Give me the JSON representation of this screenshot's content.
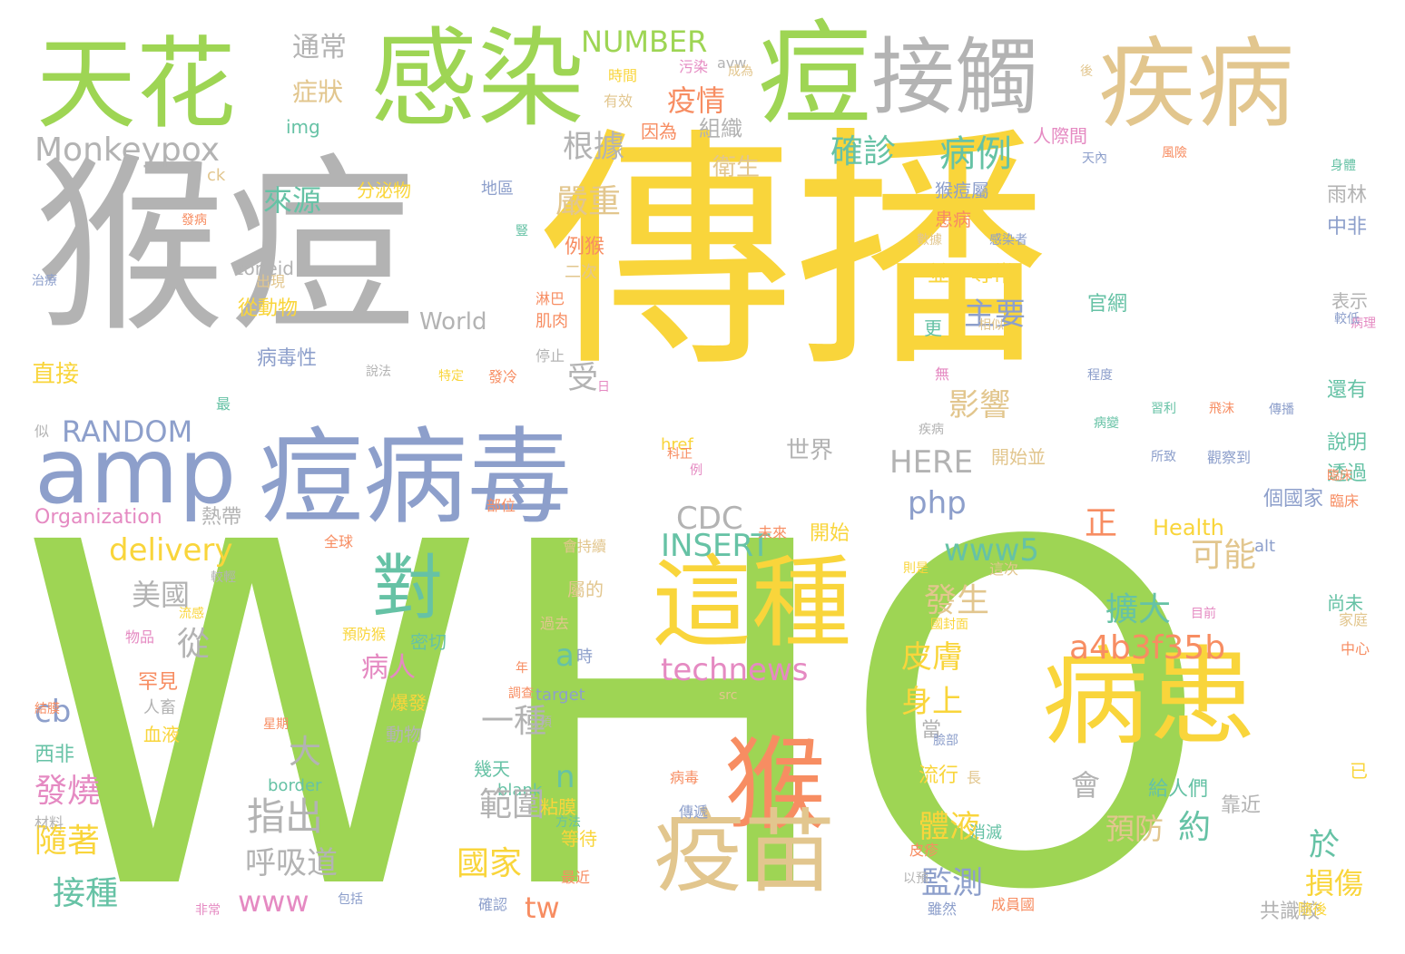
{
  "palette": {
    "green": "#9ed554",
    "yellow": "#f9d53b",
    "gray": "#b3b3b3",
    "tan": "#e2c68e",
    "blue": "#8d9fcb",
    "orange": "#f78d62",
    "teal": "#66c2a5",
    "pink": "#e58ac2"
  },
  "words": [
    {
      "text": "WHO",
      "color": "#9ed554"
    },
    {
      "text": "傳播",
      "color": "#f9d53b"
    },
    {
      "text": "猴痘",
      "color": "#b3b3b3"
    },
    {
      "text": "痘病毒",
      "color": "#8d9fcb"
    },
    {
      "text": "amp",
      "color": "#8d9fcb"
    },
    {
      "text": "天花",
      "color": "#9ed554"
    },
    {
      "text": "感染",
      "color": "#9ed554"
    },
    {
      "text": "痘",
      "color": "#9ed554"
    },
    {
      "text": "接觸",
      "color": "#b3b3b3"
    },
    {
      "text": "疾病",
      "color": "#e2c68e"
    },
    {
      "text": "病患",
      "color": "#f9d53b"
    },
    {
      "text": "這種",
      "color": "#f9d53b"
    },
    {
      "text": "猴",
      "color": "#f78d62"
    },
    {
      "text": "疫苗",
      "color": "#e2c68e"
    },
    {
      "text": "對",
      "color": "#66c2a5"
    },
    {
      "text": "Monkeypox",
      "color": "#b3b3b3"
    },
    {
      "text": "NUMBER",
      "color": "#9ed554"
    },
    {
      "text": "RANDOM",
      "color": "#8d9fcb"
    },
    {
      "text": "delivery",
      "color": "#f9d53b"
    },
    {
      "text": "technews",
      "color": "#e58ac2"
    },
    {
      "text": "a4b3f35b",
      "color": "#f78d62"
    },
    {
      "text": "INSERT",
      "color": "#66c2a5"
    },
    {
      "text": "www5",
      "color": "#66c2a5"
    },
    {
      "text": "php",
      "color": "#8d9fcb"
    },
    {
      "text": "HERE",
      "color": "#b3b3b3"
    },
    {
      "text": "CDC",
      "color": "#b3b3b3"
    },
    {
      "text": "www",
      "color": "#e58ac2"
    },
    {
      "text": "tw",
      "color": "#f78d62"
    },
    {
      "text": "cb",
      "color": "#8d9fcb"
    },
    {
      "text": "a",
      "color": "#66c2a5"
    },
    {
      "text": "n",
      "color": "#66c2a5"
    },
    {
      "text": "World",
      "color": "#b3b3b3"
    },
    {
      "text": "Organization",
      "color": "#e58ac2"
    },
    {
      "text": "Health",
      "color": "#f9d53b"
    },
    {
      "text": "zoneid",
      "color": "#b3b3b3"
    },
    {
      "text": "img",
      "color": "#66c2a5"
    },
    {
      "text": "ck",
      "color": "#e2c68e"
    },
    {
      "text": "avw",
      "color": "#b3b3b3"
    },
    {
      "text": "href",
      "color": "#f9d53b"
    },
    {
      "text": "target",
      "color": "#8d9fcb"
    },
    {
      "text": "src",
      "color": "#e2c68e"
    },
    {
      "text": "blank",
      "color": "#66c2a5"
    },
    {
      "text": "border",
      "color": "#66c2a5"
    },
    {
      "text": "alt",
      "color": "#8d9fcb"
    },
    {
      "text": "確診",
      "color": "#66c2a5"
    },
    {
      "text": "病例",
      "color": "#66c2a5"
    },
    {
      "text": "主要",
      "color": "#8d9fcb"
    },
    {
      "text": "影響",
      "color": "#e2c68e"
    },
    {
      "text": "發生",
      "color": "#e2c68e"
    },
    {
      "text": "擴大",
      "color": "#66c2a5"
    },
    {
      "text": "皮膚",
      "color": "#f9d53b"
    },
    {
      "text": "身上",
      "color": "#f9d53b"
    },
    {
      "text": "體液",
      "color": "#f9d53b"
    },
    {
      "text": "監測",
      "color": "#8d9fcb"
    },
    {
      "text": "約",
      "color": "#66c2a5"
    },
    {
      "text": "預防",
      "color": "#e2c68e"
    },
    {
      "text": "會",
      "color": "#b3b3b3"
    },
    {
      "text": "國家",
      "color": "#f9d53b"
    },
    {
      "text": "範圍",
      "color": "#b3b3b3"
    },
    {
      "text": "一種",
      "color": "#b3b3b3"
    },
    {
      "text": "指出",
      "color": "#b3b3b3"
    },
    {
      "text": "呼吸道",
      "color": "#b3b3b3"
    },
    {
      "text": "大",
      "color": "#b3b3b3"
    },
    {
      "text": "病人",
      "color": "#e58ac2"
    },
    {
      "text": "發燒",
      "color": "#e58ac2"
    },
    {
      "text": "隨著",
      "color": "#f9d53b"
    },
    {
      "text": "接種",
      "color": "#66c2a5"
    },
    {
      "text": "從",
      "color": "#b3b3b3"
    },
    {
      "text": "美國",
      "color": "#b3b3b3"
    },
    {
      "text": "可能",
      "color": "#e2c68e"
    },
    {
      "text": "正",
      "color": "#f78d62"
    },
    {
      "text": "於",
      "color": "#66c2a5"
    },
    {
      "text": "損傷",
      "color": "#f9d53b"
    },
    {
      "text": "根據",
      "color": "#b3b3b3"
    },
    {
      "text": "嚴重",
      "color": "#e2c68e"
    },
    {
      "text": "來源",
      "color": "#66c2a5"
    },
    {
      "text": "疫情",
      "color": "#f78d62"
    },
    {
      "text": "症狀",
      "color": "#e2c68e"
    },
    {
      "text": "通常",
      "color": "#b3b3b3"
    },
    {
      "text": "組織",
      "color": "#b3b3b3"
    },
    {
      "text": "衛生",
      "color": "#e2c68e"
    },
    {
      "text": "世界",
      "color": "#b3b3b3"
    },
    {
      "text": "受",
      "color": "#b3b3b3"
    },
    {
      "text": "直接",
      "color": "#f9d53b"
    },
    {
      "text": "病毒性",
      "color": "#8d9fcb"
    },
    {
      "text": "從動物",
      "color": "#f9d53b"
    },
    {
      "text": "分泌物",
      "color": "#f9d53b"
    },
    {
      "text": "地區",
      "color": "#8d9fcb"
    },
    {
      "text": "例猴",
      "color": "#f78d62"
    },
    {
      "text": "二次",
      "color": "#e2c68e"
    },
    {
      "text": "淋巴",
      "color": "#f78d62"
    },
    {
      "text": "肌肉",
      "color": "#f78d62"
    },
    {
      "text": "並不尋常",
      "color": "#f9d53b"
    },
    {
      "text": "官網",
      "color": "#66c2a5"
    },
    {
      "text": "更",
      "color": "#66c2a5"
    },
    {
      "text": "猴痘屬",
      "color": "#8d9fcb"
    },
    {
      "text": "患病",
      "color": "#f78d62"
    },
    {
      "text": "人際間",
      "color": "#e58ac2"
    },
    {
      "text": "因為",
      "color": "#f78d62"
    },
    {
      "text": "時間",
      "color": "#f9d53b"
    },
    {
      "text": "有效",
      "color": "#e2c68e"
    },
    {
      "text": "污染",
      "color": "#e58ac2"
    },
    {
      "text": "成為",
      "color": "#e2c68e"
    },
    {
      "text": "天內",
      "color": "#8d9fcb"
    },
    {
      "text": "風險",
      "color": "#f78d62"
    },
    {
      "text": "身體",
      "color": "#66c2a5"
    },
    {
      "text": "雨林",
      "color": "#b3b3b3"
    },
    {
      "text": "中非",
      "color": "#8d9fcb"
    },
    {
      "text": "表示",
      "color": "#b3b3b3"
    },
    {
      "text": "還有",
      "color": "#66c2a5"
    },
    {
      "text": "說明",
      "color": "#66c2a5"
    },
    {
      "text": "透過",
      "color": "#66c2a5"
    },
    {
      "text": "臨床",
      "color": "#f78d62"
    },
    {
      "text": "個國家",
      "color": "#8d9fcb"
    },
    {
      "text": "尚未",
      "color": "#66c2a5"
    },
    {
      "text": "家庭",
      "color": "#e2c68e"
    },
    {
      "text": "中心",
      "color": "#f78d62"
    },
    {
      "text": "已",
      "color": "#f9d53b"
    },
    {
      "text": "給人們",
      "color": "#66c2a5"
    },
    {
      "text": "靠近",
      "color": "#b3b3b3"
    },
    {
      "text": "目前",
      "color": "#e58ac2"
    },
    {
      "text": "共識較",
      "color": "#b3b3b3"
    },
    {
      "text": "隨後",
      "color": "#f9d53b"
    },
    {
      "text": "流行",
      "color": "#f9d53b"
    },
    {
      "text": "長",
      "color": "#e2c68e"
    },
    {
      "text": "當",
      "color": "#b3b3b3"
    },
    {
      "text": "臉部",
      "color": "#8d9fcb"
    },
    {
      "text": "消滅",
      "color": "#66c2a5"
    },
    {
      "text": "皮疹",
      "color": "#f78d62"
    },
    {
      "text": "以預",
      "color": "#b3b3b3"
    },
    {
      "text": "雖然",
      "color": "#8d9fcb"
    },
    {
      "text": "成員國",
      "color": "#f78d62"
    },
    {
      "text": "病毒",
      "color": "#f78d62"
    },
    {
      "text": "傳遞",
      "color": "#8d9fcb"
    },
    {
      "text": "幾天",
      "color": "#66c2a5"
    },
    {
      "text": "粘膜",
      "color": "#f9d53b"
    },
    {
      "text": "確認",
      "color": "#8d9fcb"
    },
    {
      "text": "方法",
      "color": "#66c2a5"
    },
    {
      "text": "等待",
      "color": "#f9d53b"
    },
    {
      "text": "最近",
      "color": "#f78d62"
    },
    {
      "text": "包括",
      "color": "#8d9fcb"
    },
    {
      "text": "非常",
      "color": "#e58ac2"
    },
    {
      "text": "材料",
      "color": "#b3b3b3"
    },
    {
      "text": "西非",
      "color": "#66c2a5"
    },
    {
      "text": "結膜",
      "color": "#f78d62"
    },
    {
      "text": "物品",
      "color": "#e58ac2"
    },
    {
      "text": "流感",
      "color": "#f9d53b"
    },
    {
      "text": "罕見",
      "color": "#f78d62"
    },
    {
      "text": "人畜",
      "color": "#b3b3b3"
    },
    {
      "text": "血液",
      "color": "#f9d53b"
    },
    {
      "text": "星期",
      "color": "#f78d62"
    },
    {
      "text": "動物",
      "color": "#b3b3b3"
    },
    {
      "text": "爆發",
      "color": "#f9d53b"
    },
    {
      "text": "密切",
      "color": "#66c2a5"
    },
    {
      "text": "預防猴",
      "color": "#f9d53b"
    },
    {
      "text": "時",
      "color": "#8d9fcb"
    },
    {
      "text": "熱帶",
      "color": "#b3b3b3"
    },
    {
      "text": "全球",
      "color": "#f78d62"
    },
    {
      "text": "較輕",
      "color": "#b3b3b3"
    },
    {
      "text": "治療",
      "color": "#8d9fcb"
    },
    {
      "text": "發病",
      "color": "#f78d62"
    },
    {
      "text": "出現",
      "color": "#e2c68e"
    },
    {
      "text": "說法",
      "color": "#b3b3b3"
    },
    {
      "text": "特定",
      "color": "#f9d53b"
    },
    {
      "text": "發冷",
      "color": "#f78d62"
    },
    {
      "text": "停止",
      "color": "#b3b3b3"
    },
    {
      "text": "日",
      "color": "#e58ac2"
    },
    {
      "text": "最",
      "color": "#66c2a5"
    },
    {
      "text": "似",
      "color": "#b3b3b3"
    },
    {
      "text": "部位",
      "color": "#f78d62"
    },
    {
      "text": "未來",
      "color": "#f78d62"
    },
    {
      "text": "開始",
      "color": "#f9d53b"
    },
    {
      "text": "科正",
      "color": "#f78d62"
    },
    {
      "text": "例",
      "color": "#e58ac2"
    },
    {
      "text": "開始並",
      "color": "#e2c68e"
    },
    {
      "text": "疾病",
      "color": "#b3b3b3"
    },
    {
      "text": "程度",
      "color": "#8d9fcb"
    },
    {
      "text": "無",
      "color": "#e58ac2"
    },
    {
      "text": "相似",
      "color": "#e2c68e"
    },
    {
      "text": "習利",
      "color": "#66c2a5"
    },
    {
      "text": "飛沫",
      "color": "#f78d62"
    },
    {
      "text": "病變",
      "color": "#66c2a5"
    },
    {
      "text": "所致",
      "color": "#8d9fcb"
    },
    {
      "text": "觀察到",
      "color": "#8d9fcb"
    },
    {
      "text": "數據",
      "color": "#e2c68e"
    },
    {
      "text": "感染者",
      "color": "#8d9fcb"
    },
    {
      "text": "則是",
      "color": "#f9d53b"
    },
    {
      "text": "這次",
      "color": "#e2c68e"
    },
    {
      "text": "過去",
      "color": "#e2c68e"
    },
    {
      "text": "年",
      "color": "#f78d62"
    },
    {
      "text": "調查",
      "color": "#f78d62"
    },
    {
      "text": "屬的",
      "color": "#e2c68e"
    },
    {
      "text": "會持續",
      "color": "#e2c68e"
    },
    {
      "text": "以預",
      "color": "#b3b3b3"
    },
    {
      "text": "國封面",
      "color": "#f9d53b"
    },
    {
      "text": "豎",
      "color": "#66c2a5"
    },
    {
      "text": "臨床",
      "color": "#f78d62"
    },
    {
      "text": "後",
      "color": "#e2c68e"
    },
    {
      "text": "病理",
      "color": "#e58ac2"
    },
    {
      "text": "傳播",
      "color": "#8d9fcb"
    },
    {
      "text": "較低",
      "color": "#8d9fcb"
    }
  ]
}
